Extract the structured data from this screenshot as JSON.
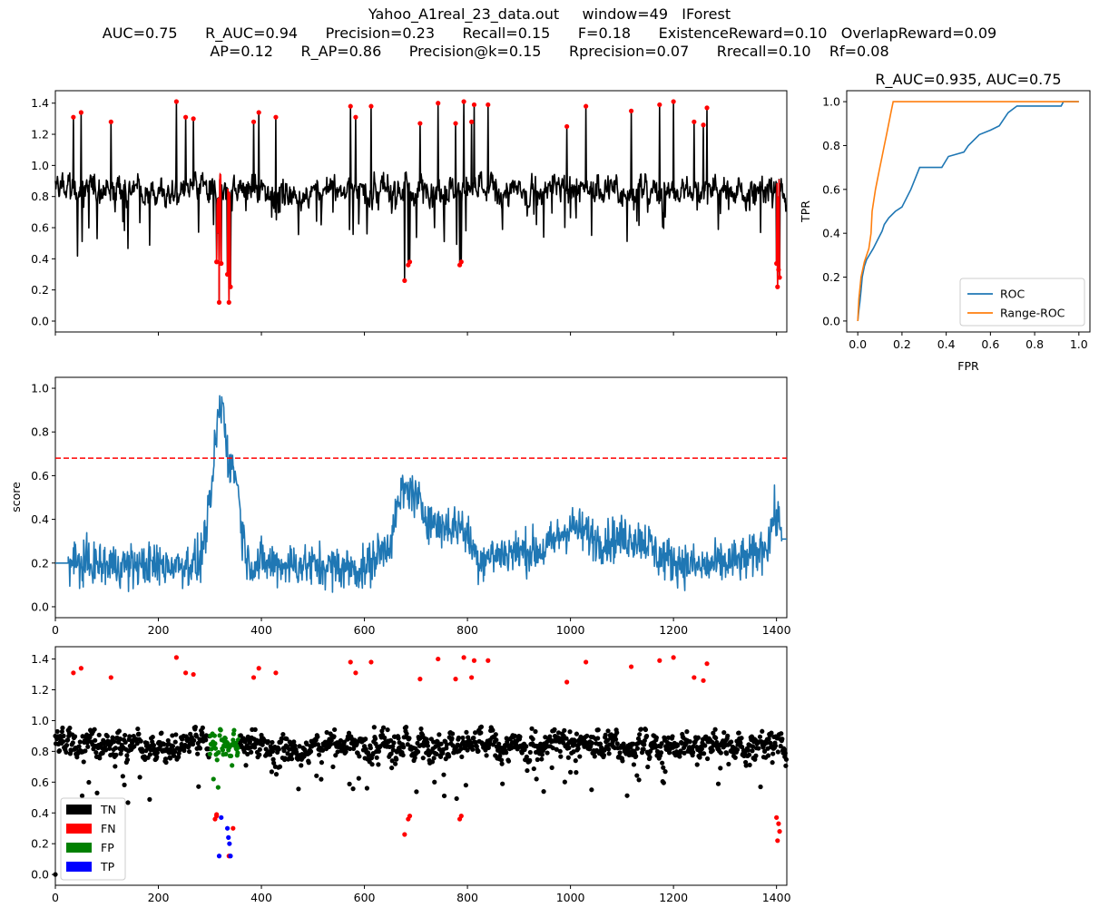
{
  "title_lines": [
    "Yahoo_A1real_23_data.out     window=49   IForest",
    "AUC=0.75      R_AUC=0.94      Precision=0.23      Recall=0.15      F=0.18      ExistenceReward=0.10   OverlapReward=0.09",
    "AP=0.12      R_AP=0.86      Precision@k=0.15      Rprecision=0.07      Rrecall=0.10    Rf=0.08"
  ],
  "colors": {
    "series": "#000000",
    "anomaly": "#ff0000",
    "score": "#1f77b4",
    "threshold": "#ff0000",
    "roc": "#1f77b4",
    "range_roc": "#ff7f0e",
    "tn": "#000000",
    "fn": "#ff0000",
    "fp": "#008000",
    "tp": "#0000ff"
  },
  "chart_data": [
    {
      "id": "series",
      "type": "line",
      "xlim": [
        0,
        1420
      ],
      "ylim": [
        -0.07,
        1.48
      ],
      "yticks": [
        "0.0",
        "0.2",
        "0.4",
        "0.6",
        "0.8",
        "1.0",
        "1.2",
        "1.4"
      ],
      "n": 1420,
      "baseline": 0.84,
      "spikes": [
        [
          35,
          1.31
        ],
        [
          50,
          1.34
        ],
        [
          108,
          1.28
        ],
        [
          235,
          1.41
        ],
        [
          253,
          1.31
        ],
        [
          268,
          1.3
        ],
        [
          385,
          1.28
        ],
        [
          395,
          1.34
        ],
        [
          428,
          1.31
        ],
        [
          573,
          1.38
        ],
        [
          583,
          1.31
        ],
        [
          613,
          1.38
        ],
        [
          708,
          1.27
        ],
        [
          743,
          1.4
        ],
        [
          777,
          1.27
        ],
        [
          793,
          1.41
        ],
        [
          808,
          1.28
        ],
        [
          813,
          1.39
        ],
        [
          840,
          1.39
        ],
        [
          993,
          1.25
        ],
        [
          1030,
          1.38
        ],
        [
          1118,
          1.35
        ],
        [
          1173,
          1.39
        ],
        [
          1200,
          1.41
        ],
        [
          1240,
          1.28
        ],
        [
          1258,
          1.26
        ],
        [
          1265,
          1.37
        ]
      ],
      "dips": [
        [
          313,
          0.38
        ],
        [
          318,
          0.12
        ],
        [
          322,
          0.37
        ],
        [
          334,
          0.3
        ],
        [
          337,
          0.12
        ],
        [
          340,
          0.22
        ],
        [
          678,
          0.26
        ],
        [
          685,
          0.36
        ],
        [
          688,
          0.38
        ],
        [
          785,
          0.36
        ],
        [
          788,
          0.38
        ],
        [
          1400,
          0.37
        ],
        [
          1402,
          0.22
        ],
        [
          1404,
          0.33
        ],
        [
          1406,
          0.28
        ]
      ]
    },
    {
      "id": "roc",
      "type": "line",
      "title": "R_AUC=0.935, AUC=0.75",
      "xlabel": "FPR",
      "ylabel": "TPR",
      "xlim": [
        -0.05,
        1.05
      ],
      "ylim": [
        -0.05,
        1.05
      ],
      "xticks": [
        "0.0",
        "0.2",
        "0.4",
        "0.6",
        "0.8",
        "1.0"
      ],
      "yticks": [
        "0.0",
        "0.2",
        "0.4",
        "0.6",
        "0.8",
        "1.0"
      ],
      "legend": "lower-right",
      "series": [
        {
          "name": "ROC",
          "points": [
            [
              0,
              0
            ],
            [
              0.005,
              0.05
            ],
            [
              0.01,
              0.09
            ],
            [
              0.015,
              0.14
            ],
            [
              0.02,
              0.2
            ],
            [
              0.03,
              0.25
            ],
            [
              0.04,
              0.28
            ],
            [
              0.07,
              0.33
            ],
            [
              0.09,
              0.37
            ],
            [
              0.11,
              0.41
            ],
            [
              0.12,
              0.44
            ],
            [
              0.14,
              0.47
            ],
            [
              0.17,
              0.5
            ],
            [
              0.2,
              0.52
            ],
            [
              0.24,
              0.6
            ],
            [
              0.28,
              0.7
            ],
            [
              0.38,
              0.7
            ],
            [
              0.41,
              0.75
            ],
            [
              0.48,
              0.77
            ],
            [
              0.5,
              0.8
            ],
            [
              0.55,
              0.85
            ],
            [
              0.6,
              0.87
            ],
            [
              0.64,
              0.89
            ],
            [
              0.66,
              0.92
            ],
            [
              0.68,
              0.95
            ],
            [
              0.72,
              0.98
            ],
            [
              0.92,
              0.98
            ],
            [
              0.93,
              1.0
            ],
            [
              1.0,
              1.0
            ]
          ]
        },
        {
          "name": "Range-ROC",
          "points": [
            [
              0,
              0
            ],
            [
              0.005,
              0.1
            ],
            [
              0.015,
              0.2
            ],
            [
              0.03,
              0.27
            ],
            [
              0.05,
              0.33
            ],
            [
              0.06,
              0.4
            ],
            [
              0.065,
              0.5
            ],
            [
              0.08,
              0.6
            ],
            [
              0.09,
              0.65
            ],
            [
              0.1,
              0.7
            ],
            [
              0.11,
              0.75
            ],
            [
              0.12,
              0.8
            ],
            [
              0.13,
              0.85
            ],
            [
              0.14,
              0.9
            ],
            [
              0.15,
              0.95
            ],
            [
              0.16,
              1.0
            ],
            [
              1.0,
              1.0
            ]
          ]
        }
      ]
    },
    {
      "id": "score",
      "type": "line",
      "ylabel": "score",
      "xlim": [
        0,
        1420
      ],
      "ylim": [
        -0.05,
        1.05
      ],
      "xticks": [
        "0",
        "200",
        "400",
        "600",
        "800",
        "1000",
        "1200",
        "1400"
      ],
      "yticks": [
        "0.0",
        "0.2",
        "0.4",
        "0.6",
        "0.8",
        "1.0"
      ],
      "threshold": 0.68,
      "flat_start": [
        0,
        25,
        0.2
      ],
      "flat_end": [
        1410,
        1420,
        0.31
      ],
      "envelope": [
        [
          25,
          0.2
        ],
        [
          100,
          0.19
        ],
        [
          200,
          0.19
        ],
        [
          280,
          0.2
        ],
        [
          300,
          0.45
        ],
        [
          315,
          0.82
        ],
        [
          325,
          0.88
        ],
        [
          338,
          0.65
        ],
        [
          352,
          0.6
        ],
        [
          362,
          0.35
        ],
        [
          375,
          0.2
        ],
        [
          500,
          0.19
        ],
        [
          600,
          0.17
        ],
        [
          650,
          0.3
        ],
        [
          672,
          0.52
        ],
        [
          690,
          0.54
        ],
        [
          710,
          0.45
        ],
        [
          740,
          0.37
        ],
        [
          790,
          0.37
        ],
        [
          820,
          0.22
        ],
        [
          880,
          0.25
        ],
        [
          950,
          0.26
        ],
        [
          1000,
          0.37
        ],
        [
          1060,
          0.3
        ],
        [
          1120,
          0.32
        ],
        [
          1150,
          0.3
        ],
        [
          1170,
          0.23
        ],
        [
          1250,
          0.18
        ],
        [
          1350,
          0.22
        ],
        [
          1385,
          0.3
        ],
        [
          1395,
          0.42
        ],
        [
          1410,
          0.36
        ]
      ]
    },
    {
      "id": "classification",
      "type": "scatter",
      "xlim": [
        0,
        1420
      ],
      "ylim": [
        -0.07,
        1.48
      ],
      "xticks": [
        "0",
        "200",
        "400",
        "600",
        "800",
        "1000",
        "1200",
        "1400"
      ],
      "yticks": [
        "0.0",
        "0.2",
        "0.4",
        "0.6",
        "0.8",
        "1.0",
        "1.2",
        "1.4"
      ],
      "legend": "lower-left",
      "legend_entries": [
        "TN",
        "FN",
        "FP",
        "TP"
      ],
      "fp_range": [
        300,
        358
      ],
      "tp_points": [
        [
          318,
          0.12
        ],
        [
          322,
          0.37
        ],
        [
          334,
          0.3
        ],
        [
          336,
          0.24
        ],
        [
          338,
          0.2
        ],
        [
          340,
          0.12
        ]
      ],
      "fn_extra": [
        [
          313,
          0.39
        ],
        [
          310,
          0.36
        ],
        [
          345,
          0.3
        ]
      ],
      "outliers": [
        [
          0,
          0.0
        ]
      ]
    }
  ]
}
